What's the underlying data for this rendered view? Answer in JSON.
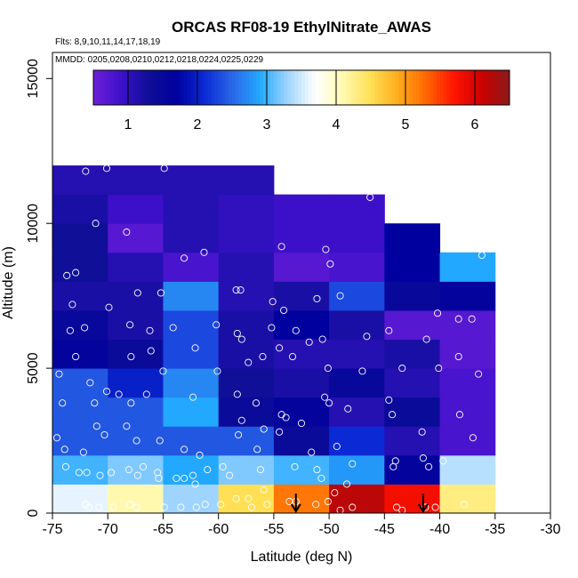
{
  "chart_data": {
    "type": "heatmap",
    "title": "ORCAS RF08-19 EthylNitrate_AWAS",
    "flights_note": "Flts: 8,9,10,11,14,17,18,19",
    "dates_note": "MMDD: 0205,0208,0210,0212,0218,0224,0225,0229",
    "xlabel": "Latitude (deg N)",
    "ylabel": "Altitude (m)",
    "xlim": [
      -75,
      -30
    ],
    "ylim": [
      0,
      15900
    ],
    "xticks": [
      -75,
      -70,
      -65,
      -60,
      -55,
      -50,
      -45,
      -40,
      -35,
      -30
    ],
    "yticks": [
      0,
      5000,
      10000,
      15000
    ],
    "colorbar": {
      "min": 0.5,
      "max": 6.5,
      "ticks": [
        1,
        2,
        3,
        4,
        5,
        6
      ],
      "colors": [
        "#6f1fd8",
        "#3c10c9",
        "#0f0f98",
        "#00009e",
        "#0b2ad6",
        "#2a66e6",
        "#22a8ff",
        "#9fd4ff",
        "#ffffff",
        "#fff9b0",
        "#ffe054",
        "#ffab1c",
        "#ff6600",
        "#ff1400",
        "#cc0000",
        "#8a1a1a"
      ]
    },
    "x_bin_edges": [
      -75,
      -70,
      -65,
      -60,
      -55,
      -50,
      -45,
      -40,
      -35
    ],
    "y_bin_edges": [
      0,
      1000,
      2000,
      3000,
      4000,
      5000,
      6000,
      7000,
      8000,
      9000,
      10000,
      11000,
      12000
    ],
    "cells": [
      {
        "xi": 0,
        "yi": 0,
        "value": 3.6
      },
      {
        "xi": 1,
        "yi": 0,
        "value": 4.1
      },
      {
        "xi": 2,
        "yi": 0,
        "value": 3.3
      },
      {
        "xi": 3,
        "yi": 0,
        "value": 4.5
      },
      {
        "xi": 4,
        "yi": 0,
        "value": 5.2
      },
      {
        "xi": 5,
        "yi": 0,
        "value": 6.2
      },
      {
        "xi": 6,
        "yi": 0,
        "value": 5.8
      },
      {
        "xi": 7,
        "yi": 0,
        "value": 4.3
      },
      {
        "xi": 0,
        "yi": 1,
        "value": 3.0
      },
      {
        "xi": 1,
        "yi": 1,
        "value": 3.2
      },
      {
        "xi": 2,
        "yi": 1,
        "value": 2.9
      },
      {
        "xi": 3,
        "yi": 1,
        "value": 3.2
      },
      {
        "xi": 4,
        "yi": 1,
        "value": 3.0
      },
      {
        "xi": 5,
        "yi": 1,
        "value": 2.8
      },
      {
        "xi": 6,
        "yi": 1,
        "value": 1.6
      },
      {
        "xi": 7,
        "yi": 1,
        "value": 3.4
      },
      {
        "xi": 0,
        "yi": 2,
        "value": 2.4
      },
      {
        "xi": 1,
        "yi": 2,
        "value": 2.4
      },
      {
        "xi": 2,
        "yi": 2,
        "value": 2.4
      },
      {
        "xi": 3,
        "yi": 2,
        "value": 2.4
      },
      {
        "xi": 4,
        "yi": 2,
        "value": 1.4
      },
      {
        "xi": 5,
        "yi": 2,
        "value": 2.1
      },
      {
        "xi": 6,
        "yi": 2,
        "value": 1.1
      },
      {
        "xi": 7,
        "yi": 2,
        "value": 0.8
      },
      {
        "xi": 0,
        "yi": 3,
        "value": 2.4
      },
      {
        "xi": 1,
        "yi": 3,
        "value": 2.4
      },
      {
        "xi": 2,
        "yi": 3,
        "value": 2.9
      },
      {
        "xi": 3,
        "yi": 3,
        "value": 1.4
      },
      {
        "xi": 4,
        "yi": 3,
        "value": 1.6
      },
      {
        "xi": 5,
        "yi": 3,
        "value": 1.1
      },
      {
        "xi": 6,
        "yi": 3,
        "value": 1.4
      },
      {
        "xi": 7,
        "yi": 3,
        "value": 0.8
      },
      {
        "xi": 0,
        "yi": 4,
        "value": 2.4
      },
      {
        "xi": 1,
        "yi": 4,
        "value": 2.0
      },
      {
        "xi": 2,
        "yi": 4,
        "value": 2.7
      },
      {
        "xi": 3,
        "yi": 4,
        "value": 1.3
      },
      {
        "xi": 4,
        "yi": 4,
        "value": 1.2
      },
      {
        "xi": 5,
        "yi": 4,
        "value": 1.5
      },
      {
        "xi": 6,
        "yi": 4,
        "value": 1.1
      },
      {
        "xi": 7,
        "yi": 4,
        "value": 0.8
      },
      {
        "xi": 0,
        "yi": 5,
        "value": 1.6
      },
      {
        "xi": 1,
        "yi": 5,
        "value": 1.4
      },
      {
        "xi": 2,
        "yi": 5,
        "value": 2.3
      },
      {
        "xi": 3,
        "yi": 5,
        "value": 1.2
      },
      {
        "xi": 4,
        "yi": 5,
        "value": 1.1
      },
      {
        "xi": 5,
        "yi": 5,
        "value": 1.1
      },
      {
        "xi": 6,
        "yi": 5,
        "value": 1.2
      },
      {
        "xi": 7,
        "yi": 5,
        "value": 0.7
      },
      {
        "xi": 0,
        "yi": 6,
        "value": 1.5
      },
      {
        "xi": 1,
        "yi": 6,
        "value": 1.2
      },
      {
        "xi": 2,
        "yi": 6,
        "value": 2.3
      },
      {
        "xi": 3,
        "yi": 6,
        "value": 1.2
      },
      {
        "xi": 4,
        "yi": 6,
        "value": 1.7
      },
      {
        "xi": 5,
        "yi": 6,
        "value": 1.2
      },
      {
        "xi": 6,
        "yi": 6,
        "value": 0.7
      },
      {
        "xi": 7,
        "yi": 6,
        "value": 0.7
      },
      {
        "xi": 0,
        "yi": 7,
        "value": 1.2
      },
      {
        "xi": 1,
        "yi": 7,
        "value": 1.2
      },
      {
        "xi": 2,
        "yi": 7,
        "value": 2.7
      },
      {
        "xi": 3,
        "yi": 7,
        "value": 1.1
      },
      {
        "xi": 4,
        "yi": 7,
        "value": 1.2
      },
      {
        "xi": 5,
        "yi": 7,
        "value": 2.3
      },
      {
        "xi": 6,
        "yi": 7,
        "value": 1.5
      },
      {
        "xi": 7,
        "yi": 7,
        "value": 1.6
      },
      {
        "xi": 0,
        "yi": 8,
        "value": 1.3
      },
      {
        "xi": 1,
        "yi": 8,
        "value": 1.1
      },
      {
        "xi": 2,
        "yi": 8,
        "value": 0.8
      },
      {
        "xi": 3,
        "yi": 8,
        "value": 1.1
      },
      {
        "xi": 4,
        "yi": 8,
        "value": 0.7
      },
      {
        "xi": 5,
        "yi": 8,
        "value": 0.8
      },
      {
        "xi": 6,
        "yi": 8,
        "value": 1.7
      },
      {
        "xi": 7,
        "yi": 8,
        "value": 2.9
      },
      {
        "xi": 0,
        "yi": 9,
        "value": 1.3
      },
      {
        "xi": 1,
        "yi": 9,
        "value": 0.7
      },
      {
        "xi": 2,
        "yi": 9,
        "value": 1.1
      },
      {
        "xi": 3,
        "yi": 9,
        "value": 1.0
      },
      {
        "xi": 4,
        "yi": 9,
        "value": 0.9
      },
      {
        "xi": 5,
        "yi": 9,
        "value": 0.9
      },
      {
        "xi": 6,
        "yi": 9,
        "value": 1.7
      },
      {
        "xi": 0,
        "yi": 10,
        "value": 1.2
      },
      {
        "xi": 1,
        "yi": 10,
        "value": 0.9
      },
      {
        "xi": 2,
        "yi": 10,
        "value": 1.1
      },
      {
        "xi": 3,
        "yi": 10,
        "value": 1.0
      },
      {
        "xi": 4,
        "yi": 10,
        "value": 0.9
      },
      {
        "xi": 5,
        "yi": 10,
        "value": 0.9
      },
      {
        "xi": 0,
        "yi": 11,
        "value": 1.1
      },
      {
        "xi": 1,
        "yi": 11,
        "value": 1.1
      },
      {
        "xi": 2,
        "yi": 11,
        "value": 1.1
      },
      {
        "xi": 3,
        "yi": 11,
        "value": 1.1
      }
    ],
    "samples": [
      [
        -72.0,
        11800
      ],
      [
        -70.1,
        11900
      ],
      [
        -64.9,
        11900
      ],
      [
        -71.1,
        10000
      ],
      [
        -68.3,
        9700
      ],
      [
        -63.1,
        8800
      ],
      [
        -61.3,
        9000
      ],
      [
        -54.3,
        9200
      ],
      [
        -50.3,
        9100
      ],
      [
        -49.9,
        8600
      ],
      [
        -46.3,
        10900
      ],
      [
        -36.2,
        8900
      ],
      [
        -73.7,
        8200
      ],
      [
        -72.9,
        8300
      ],
      [
        -73.2,
        7200
      ],
      [
        -69.9,
        7100
      ],
      [
        -67.3,
        7600
      ],
      [
        -65.2,
        7600
      ],
      [
        -58.4,
        7700
      ],
      [
        -58.0,
        7700
      ],
      [
        -55.1,
        7300
      ],
      [
        -54.1,
        7000
      ],
      [
        -49.0,
        7500
      ],
      [
        -51.1,
        7400
      ],
      [
        -40.2,
        6900
      ],
      [
        -38.3,
        6700
      ],
      [
        -37.1,
        6700
      ],
      [
        -73.4,
        6300
      ],
      [
        -72.1,
        6400
      ],
      [
        -68.0,
        6500
      ],
      [
        -66.2,
        6300
      ],
      [
        -64.1,
        6400
      ],
      [
        -60.2,
        6500
      ],
      [
        -58.3,
        6200
      ],
      [
        -57.9,
        6000
      ],
      [
        -55.2,
        6400
      ],
      [
        -53.0,
        6300
      ],
      [
        -50.6,
        6000
      ],
      [
        -46.6,
        6100
      ],
      [
        -44.6,
        6300
      ],
      [
        -41.2,
        6000
      ],
      [
        -74.4,
        4800
      ],
      [
        -72.9,
        5400
      ],
      [
        -71.6,
        4500
      ],
      [
        -70.1,
        4200
      ],
      [
        -67.9,
        5400
      ],
      [
        -66.1,
        5600
      ],
      [
        -65.0,
        4900
      ],
      [
        -62.1,
        5700
      ],
      [
        -60.1,
        4900
      ],
      [
        -57.3,
        5200
      ],
      [
        -56.0,
        5400
      ],
      [
        -54.5,
        5700
      ],
      [
        -53.3,
        5400
      ],
      [
        -51.8,
        5900
      ],
      [
        -50.1,
        5000
      ],
      [
        -47.0,
        4900
      ],
      [
        -43.4,
        5000
      ],
      [
        -40.1,
        5000
      ],
      [
        -38.3,
        5400
      ],
      [
        -36.5,
        4800
      ],
      [
        -74.1,
        3800
      ],
      [
        -71.2,
        3800
      ],
      [
        -69.0,
        4100
      ],
      [
        -67.9,
        3800
      ],
      [
        -66.5,
        4100
      ],
      [
        -62.3,
        4000
      ],
      [
        -58.3,
        4100
      ],
      [
        -56.6,
        3800
      ],
      [
        -54.3,
        3400
      ],
      [
        -52.5,
        3100
      ],
      [
        -50.4,
        4000
      ],
      [
        -50.0,
        3800
      ],
      [
        -48.3,
        3600
      ],
      [
        -44.6,
        3900
      ],
      [
        -44.3,
        3400
      ],
      [
        -41.6,
        2800
      ],
      [
        -38.2,
        3400
      ],
      [
        -74.6,
        2600
      ],
      [
        -73.9,
        2200
      ],
      [
        -72.2,
        2100
      ],
      [
        -71.0,
        3000
      ],
      [
        -70.3,
        2700
      ],
      [
        -68.3,
        3000
      ],
      [
        -67.4,
        2500
      ],
      [
        -65.3,
        2500
      ],
      [
        -63.1,
        2200
      ],
      [
        -61.7,
        2000
      ],
      [
        -58.2,
        2700
      ],
      [
        -57.9,
        3200
      ],
      [
        -56.5,
        2200
      ],
      [
        -55.9,
        2900
      ],
      [
        -54.5,
        2800
      ],
      [
        -53.9,
        3300
      ],
      [
        -51.6,
        2100
      ],
      [
        -49.3,
        2300
      ],
      [
        -47.9,
        1700
      ],
      [
        -44.0,
        1800
      ],
      [
        -41.0,
        1600
      ],
      [
        -39.7,
        1800
      ],
      [
        -37.0,
        2600
      ],
      [
        -73.8,
        1600
      ],
      [
        -72.6,
        1400
      ],
      [
        -71.9,
        1400
      ],
      [
        -70.7,
        1300
      ],
      [
        -69.7,
        1400
      ],
      [
        -68.1,
        1500
      ],
      [
        -67.3,
        1300
      ],
      [
        -66.8,
        1600
      ],
      [
        -65.5,
        1400
      ],
      [
        -65.4,
        1200
      ],
      [
        -63.8,
        1200
      ],
      [
        -63.1,
        1200
      ],
      [
        -62.3,
        1300
      ],
      [
        -62.1,
        1000
      ],
      [
        -61.0,
        1500
      ],
      [
        -59.6,
        1600
      ],
      [
        -59.0,
        1300
      ],
      [
        -56.2,
        1500
      ],
      [
        -55.9,
        800
      ],
      [
        -53.1,
        1600
      ],
      [
        -51.1,
        1500
      ],
      [
        -50.7,
        1200
      ],
      [
        -48.4,
        1000
      ],
      [
        -44.2,
        1600
      ],
      [
        -41.5,
        1900
      ],
      [
        -72.0,
        300
      ],
      [
        -71.7,
        200
      ],
      [
        -70.8,
        200
      ],
      [
        -69.5,
        200
      ],
      [
        -68.0,
        300
      ],
      [
        -67.4,
        200
      ],
      [
        -64.9,
        200
      ],
      [
        -63.4,
        200
      ],
      [
        -62.0,
        200
      ],
      [
        -61.2,
        300
      ],
      [
        -59.8,
        300
      ],
      [
        -58.4,
        500
      ],
      [
        -57.3,
        500
      ],
      [
        -57.0,
        200
      ],
      [
        -55.6,
        300
      ],
      [
        -53.6,
        400
      ],
      [
        -53.0,
        400
      ],
      [
        -51.2,
        300
      ],
      [
        -50.1,
        400
      ],
      [
        -49.5,
        700
      ],
      [
        -49.0,
        100
      ],
      [
        -47.9,
        200
      ],
      [
        -43.9,
        200
      ],
      [
        -43.4,
        100
      ],
      [
        -41.3,
        200
      ],
      [
        -40.4,
        200
      ],
      [
        -37.8,
        300
      ]
    ],
    "markers": [
      {
        "type": "arrow-down",
        "x": -53.0
      },
      {
        "type": "arrow-down",
        "x": -41.5
      }
    ]
  }
}
